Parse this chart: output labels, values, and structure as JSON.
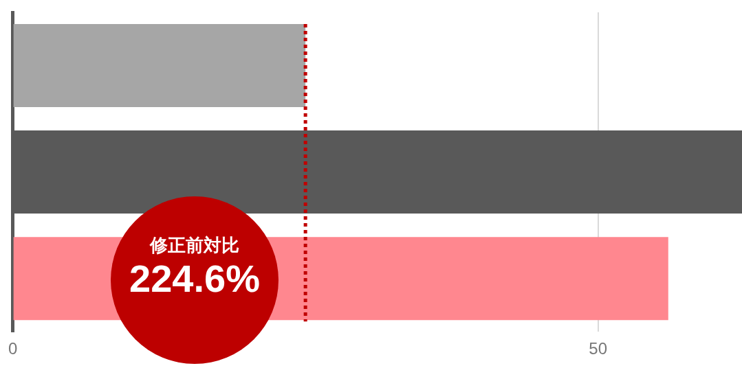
{
  "chart_data": {
    "type": "bar",
    "orientation": "horizontal",
    "categories": [
      null,
      null,
      null
    ],
    "values": [
      25,
      62.3,
      56
    ],
    "colors": [
      "#a6a6a6",
      "#595959",
      "#ff878f"
    ],
    "xlim": [
      0,
      62.3
    ],
    "xticks": [
      0,
      50
    ],
    "grid": "x",
    "tick_labels": "x",
    "ref_lines": [
      {
        "axis": "x",
        "value": 25,
        "color": "#c00000",
        "line_style": "dotted"
      }
    ],
    "annotations": [
      "修正前対比",
      "224.6%"
    ]
  }
}
